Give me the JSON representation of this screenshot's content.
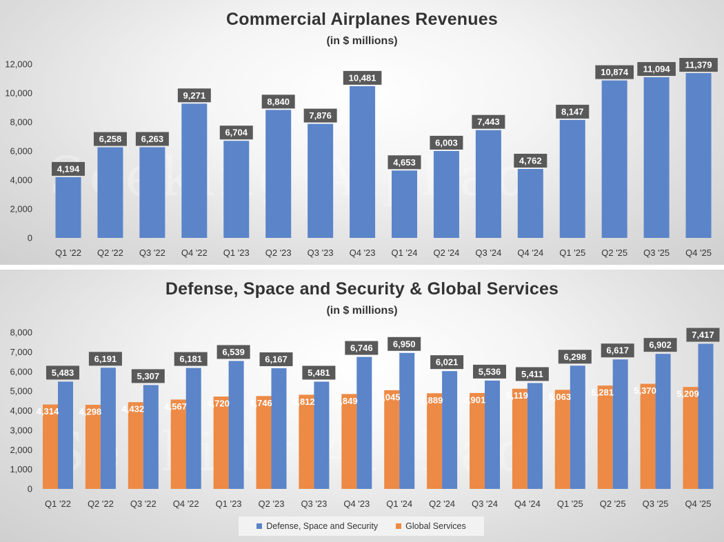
{
  "colors": {
    "blue": "#5b84c9",
    "orange": "#ed8a45",
    "label_box": "#595959",
    "label_text": "#ffffff",
    "axis_text": "#333333"
  },
  "watermark": {
    "text": "Seeking Alphaα"
  },
  "chart_data": [
    {
      "type": "bar",
      "title": "Commercial Airplanes Revenues",
      "subtitle": "(in $ millions)",
      "xlabel": "",
      "ylabel": "",
      "ylim": [
        0,
        12000
      ],
      "yticks": [
        0,
        2000,
        4000,
        6000,
        8000,
        10000,
        12000
      ],
      "ytick_labels": [
        "0",
        "2,000",
        "4,000",
        "6,000",
        "8,000",
        "10,000",
        "12,000"
      ],
      "categories": [
        "Q1 '22",
        "Q2 '22",
        "Q3 '22",
        "Q4 '22",
        "Q1 '23",
        "Q2 '23",
        "Q3 '23",
        "Q4 '23",
        "Q1 '24",
        "Q2 '24",
        "Q3 '24",
        "Q4 '24",
        "Q1 '25",
        "Q2 '25",
        "Q3 '25",
        "Q4 '25"
      ],
      "series": [
        {
          "name": "Commercial Airplanes",
          "values": [
            4194,
            6258,
            6263,
            9271,
            6704,
            8840,
            7876,
            10481,
            4653,
            6003,
            7443,
            4762,
            8147,
            10874,
            11094,
            11379
          ],
          "labels": [
            "4,194",
            "6,258",
            "6,263",
            "9,271",
            "6,704",
            "8,840",
            "7,876",
            "10,481",
            "4,653",
            "6,003",
            "7,443",
            "4,762",
            "8,147",
            "10,874",
            "11,094",
            "11,379"
          ]
        }
      ],
      "grid": false,
      "legend": "none"
    },
    {
      "type": "bar",
      "title": "Defense, Space and Security & Global Services",
      "subtitle": "(in $ millions)",
      "xlabel": "",
      "ylabel": "",
      "ylim": [
        0,
        8000
      ],
      "yticks": [
        0,
        1000,
        2000,
        3000,
        4000,
        5000,
        6000,
        7000,
        8000
      ],
      "ytick_labels": [
        "0",
        "1,000",
        "2,000",
        "3,000",
        "4,000",
        "5,000",
        "6,000",
        "7,000",
        "8,000"
      ],
      "categories": [
        "Q1 '22",
        "Q2 '22",
        "Q3 '22",
        "Q4 '22",
        "Q1 '23",
        "Q2 '23",
        "Q3 '23",
        "Q4 '23",
        "Q1 '24",
        "Q2 '24",
        "Q3 '24",
        "Q4 '24",
        "Q1 '25",
        "Q2 '25",
        "Q3 '25",
        "Q4 '25"
      ],
      "series": [
        {
          "name": "Global Services",
          "values": [
            4314,
            4298,
            4432,
            4567,
            4720,
            4746,
            4812,
            4849,
            5045,
            4889,
            4901,
            5119,
            5063,
            5281,
            5370,
            5209
          ],
          "labels": [
            "4,314",
            "4,298",
            "4,432",
            "4,567",
            "4,720",
            "4,746",
            "4,812",
            "4,849",
            "5,045",
            "4,889",
            "4,901",
            "5,119",
            "5,063",
            "5,281",
            "5,370",
            "5,209"
          ]
        },
        {
          "name": "Defense, Space and Security",
          "values": [
            5483,
            6191,
            5307,
            6181,
            6539,
            6167,
            5481,
            6746,
            6950,
            6021,
            5536,
            5411,
            6298,
            6617,
            6902,
            7417
          ],
          "labels": [
            "5,483",
            "6,191",
            "5,307",
            "6,181",
            "6,539",
            "6,167",
            "5,481",
            "6,746",
            "6,950",
            "6,021",
            "5,536",
            "5,411",
            "6,298",
            "6,617",
            "6,902",
            "7,417"
          ]
        }
      ],
      "grid": false,
      "legend": "bottom-center",
      "legend_entries": [
        "Defense, Space and Security",
        "Global Services"
      ]
    }
  ]
}
